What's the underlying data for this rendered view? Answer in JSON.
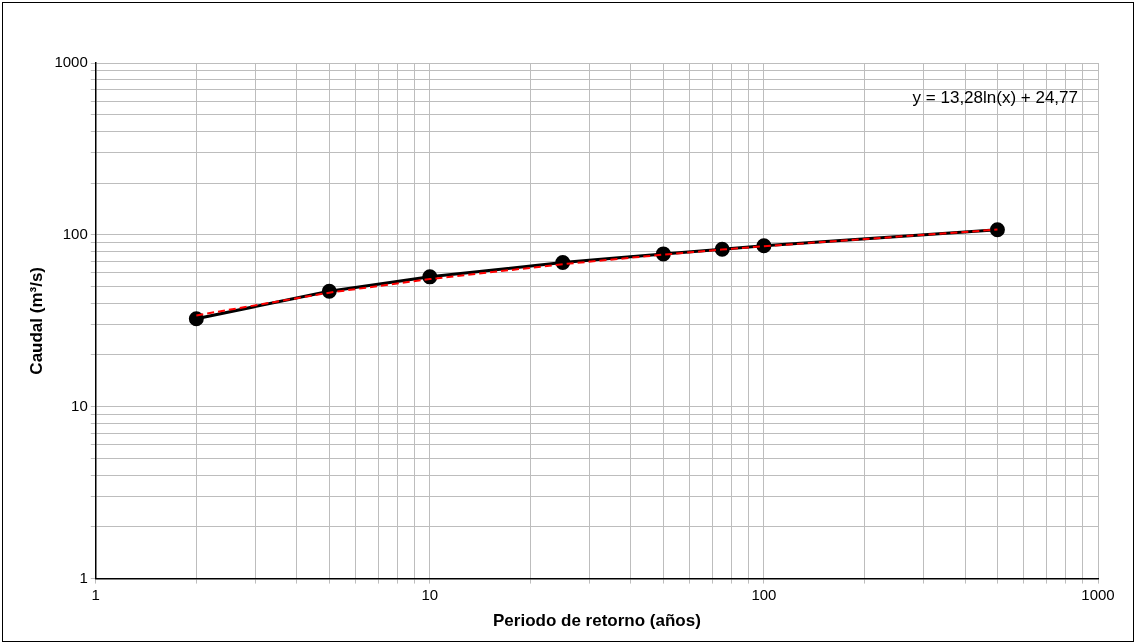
{
  "chart_data": {
    "type": "line",
    "xlabel": "Periodo de retorno (años)",
    "ylabel": "Caudal (m³/s)",
    "log": "xy",
    "grid": true,
    "legend": false,
    "annotations": [
      "y = 13,28ln(x) + 24,77"
    ],
    "xlim": [
      1,
      1000
    ],
    "ylim": [
      1,
      1000
    ],
    "xticks": [
      1,
      {
        "value": 2,
        "label": null
      },
      {
        "value": 3,
        "label": null
      },
      {
        "value": 4,
        "label": null
      },
      {
        "value": 5,
        "label": null
      },
      {
        "value": 6,
        "label": null
      },
      {
        "value": 7,
        "label": null
      },
      {
        "value": 8,
        "label": null
      },
      {
        "value": 9,
        "label": null
      },
      10,
      {
        "value": 20,
        "label": null
      },
      {
        "value": 30,
        "label": null
      },
      {
        "value": 40,
        "label": null
      },
      {
        "value": 50,
        "label": null
      },
      {
        "value": 60,
        "label": null
      },
      {
        "value": 70,
        "label": null
      },
      {
        "value": 80,
        "label": null
      },
      {
        "value": 90,
        "label": null
      },
      100,
      {
        "value": 200,
        "label": null
      },
      {
        "value": 300,
        "label": null
      },
      {
        "value": 400,
        "label": null
      },
      {
        "value": 500,
        "label": null
      },
      {
        "value": 600,
        "label": null
      },
      {
        "value": 700,
        "label": null
      },
      {
        "value": 800,
        "label": null
      },
      {
        "value": 900,
        "label": null
      },
      1000
    ],
    "yticks": [
      1,
      {
        "value": 2,
        "label": null
      },
      {
        "value": 3,
        "label": null
      },
      {
        "value": 4,
        "label": null
      },
      {
        "value": 5,
        "label": null
      },
      {
        "value": 6,
        "label": null
      },
      {
        "value": 7,
        "label": null
      },
      {
        "value": 8,
        "label": null
      },
      {
        "value": 9,
        "label": null
      },
      10,
      {
        "value": 20,
        "label": null
      },
      {
        "value": 30,
        "label": null
      },
      {
        "value": 40,
        "label": null
      },
      {
        "value": 50,
        "label": null
      },
      {
        "value": 60,
        "label": null
      },
      {
        "value": 70,
        "label": null
      },
      {
        "value": 80,
        "label": null
      },
      {
        "value": 90,
        "label": null
      },
      100,
      {
        "value": 200,
        "label": null
      },
      {
        "value": 300,
        "label": null
      },
      {
        "value": 400,
        "label": null
      },
      {
        "value": 500,
        "label": null
      },
      {
        "value": 600,
        "label": null
      },
      {
        "value": 700,
        "label": null
      },
      {
        "value": 800,
        "label": null
      },
      {
        "value": 900,
        "label": null
      },
      1000
    ],
    "series": [
      {
        "color": "#000000",
        "marker": "circle",
        "line_style": "solid",
        "x": [
          2,
          5,
          10,
          25,
          50,
          75,
          100,
          500
        ],
        "values": [
          32.5,
          47,
          57,
          69,
          77.5,
          82.5,
          86.5,
          107
        ]
      },
      {
        "color": "#ff0000",
        "marker": "none",
        "line_style": "dashed",
        "x": [
          2,
          5,
          10,
          25,
          50,
          75,
          100,
          500
        ],
        "values": [
          34,
          46.1,
          55.3,
          67.5,
          76.7,
          82.1,
          85.9,
          107.3
        ]
      }
    ]
  }
}
